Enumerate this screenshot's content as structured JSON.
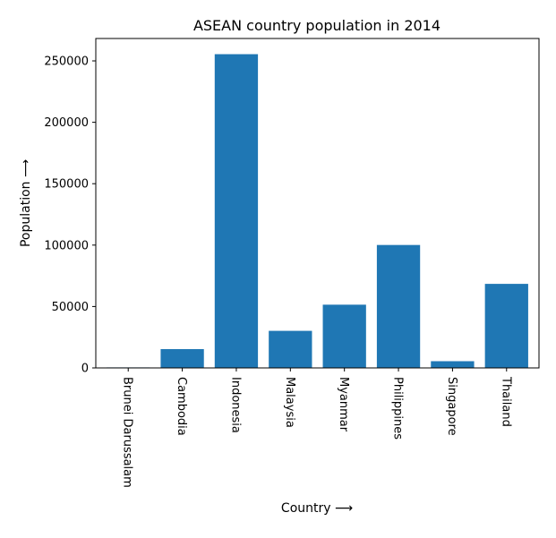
{
  "chart_data": {
    "type": "bar",
    "title": "ASEAN country population in 2014",
    "xlabel": "Country ⟶",
    "ylabel": "Population ⟶",
    "categories": [
      "Brunei Darussalam",
      "Cambodia",
      "Indonesia",
      "Malaysia",
      "Myanmar",
      "Philippines",
      "Singapore",
      "Thailand"
    ],
    "values": [
      417,
      15328,
      255462,
      30188,
      51486,
      100102,
      5470,
      68438
    ],
    "yticks": [
      0,
      50000,
      100000,
      150000,
      200000,
      250000
    ],
    "ylim": [
      0,
      268235
    ],
    "grid": false,
    "bar_color": "#1f77b4",
    "tick_label_rotation_deg": 90
  }
}
